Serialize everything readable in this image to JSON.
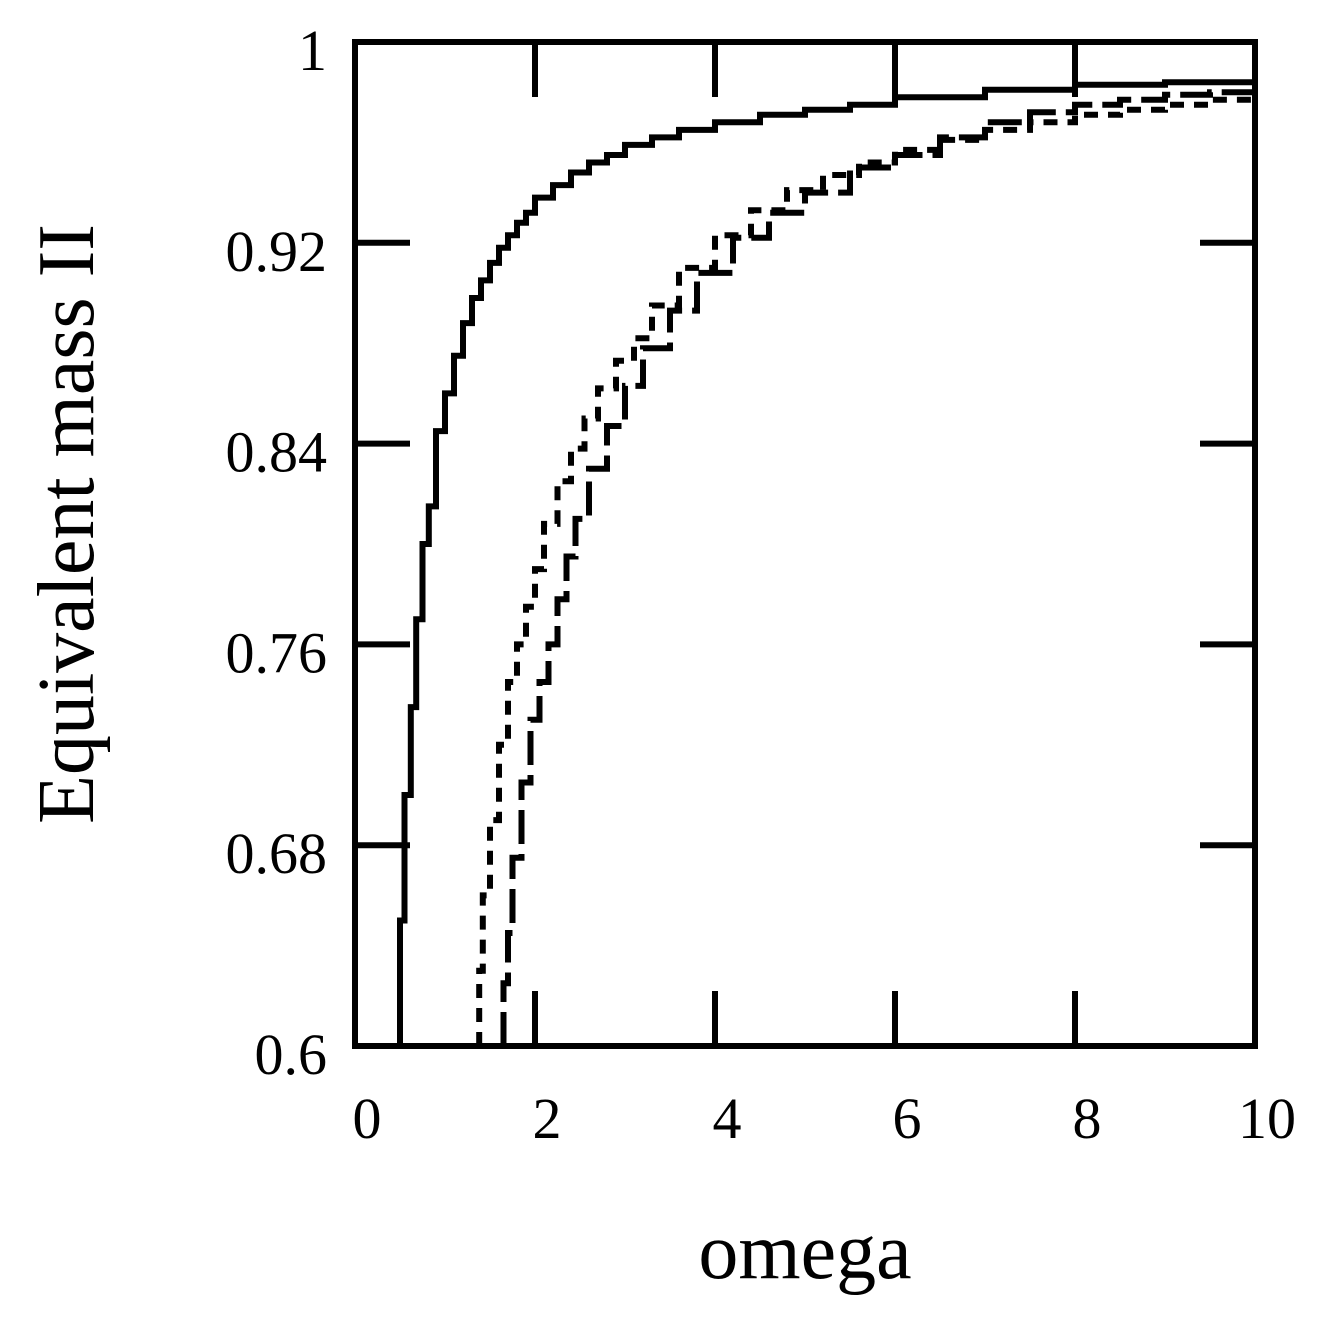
{
  "chart_data": {
    "type": "line",
    "title": "",
    "xlabel": "omega",
    "ylabel": "Equivalent mass II",
    "xlim": [
      0,
      10
    ],
    "ylim": [
      0.6,
      1.0
    ],
    "x_ticks": [
      0,
      2,
      4,
      6,
      8,
      10
    ],
    "x_tick_labels": [
      "0",
      "2",
      "4",
      "6",
      "8",
      "10"
    ],
    "y_ticks": [
      0.6,
      0.68,
      0.76,
      0.84,
      0.92,
      1.0
    ],
    "y_tick_labels": [
      "0.6",
      "0.68",
      "0.76",
      "0.84",
      "0.92",
      "1"
    ],
    "grid": false,
    "legend": "none",
    "line_color": "#000000",
    "series": [
      {
        "line_style": "solid",
        "x": [
          0.5,
          0.55,
          0.62,
          0.68,
          0.75,
          0.82,
          0.9,
          1.0,
          1.1,
          1.2,
          1.3,
          1.4,
          1.5,
          1.6,
          1.7,
          1.8,
          1.9,
          2.0,
          2.2,
          2.4,
          2.6,
          2.8,
          3.0,
          3.3,
          3.6,
          4.0,
          4.5,
          5.0,
          5.5,
          6.0,
          7.0,
          8.0,
          9.0,
          10.0
        ],
        "y": [
          0.6,
          0.65,
          0.7,
          0.735,
          0.77,
          0.8,
          0.815,
          0.845,
          0.86,
          0.875,
          0.888,
          0.898,
          0.905,
          0.912,
          0.918,
          0.923,
          0.928,
          0.932,
          0.938,
          0.943,
          0.948,
          0.952,
          0.955,
          0.959,
          0.962,
          0.965,
          0.968,
          0.971,
          0.973,
          0.975,
          0.978,
          0.981,
          0.983,
          0.984
        ]
      },
      {
        "line_style": "long-dash",
        "x": [
          1.65,
          1.7,
          1.75,
          1.85,
          1.95,
          2.05,
          2.15,
          2.25,
          2.35,
          2.45,
          2.6,
          2.8,
          3.0,
          3.2,
          3.5,
          3.8,
          4.2,
          4.6,
          5.0,
          5.5,
          6.0,
          6.5,
          7.0,
          7.5,
          8.0,
          8.5,
          9.0,
          9.5,
          10.0
        ],
        "y": [
          0.6,
          0.625,
          0.645,
          0.675,
          0.705,
          0.73,
          0.745,
          0.76,
          0.778,
          0.795,
          0.81,
          0.83,
          0.847,
          0.863,
          0.878,
          0.893,
          0.908,
          0.922,
          0.932,
          0.94,
          0.95,
          0.955,
          0.962,
          0.968,
          0.972,
          0.975,
          0.977,
          0.979,
          0.98
        ]
      },
      {
        "line_style": "short-dash",
        "x": [
          1.38,
          1.42,
          1.5,
          1.6,
          1.7,
          1.8,
          1.9,
          2.0,
          2.1,
          2.25,
          2.4,
          2.55,
          2.7,
          2.9,
          3.1,
          3.3,
          3.6,
          4.0,
          4.4,
          4.8,
          5.2,
          5.6,
          6.0,
          6.5,
          7.0,
          7.5,
          8.0,
          8.5,
          9.0,
          9.5,
          10.0
        ],
        "y": [
          0.6,
          0.63,
          0.66,
          0.69,
          0.72,
          0.745,
          0.76,
          0.775,
          0.79,
          0.808,
          0.825,
          0.838,
          0.85,
          0.862,
          0.873,
          0.882,
          0.895,
          0.91,
          0.923,
          0.933,
          0.941,
          0.947,
          0.952,
          0.957,
          0.961,
          0.965,
          0.968,
          0.971,
          0.973,
          0.975,
          0.977
        ]
      }
    ]
  }
}
